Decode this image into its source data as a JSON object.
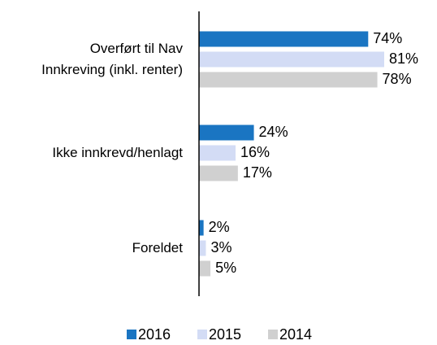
{
  "chart_data": {
    "type": "bar",
    "orientation": "horizontal",
    "categories": [
      "Overført til Nav\nInnkreving (inkl. renter)",
      "Ikke innkrevd/henlagt",
      "Foreldet"
    ],
    "series": [
      {
        "name": "2016",
        "color": "#1a75c2",
        "values": [
          74,
          24,
          2
        ],
        "value_labels": [
          "74%",
          "24%",
          "2%"
        ]
      },
      {
        "name": "2015",
        "color": "#d3dcf5",
        "values": [
          81,
          16,
          3
        ],
        "value_labels": [
          "81%",
          "16%",
          "3%"
        ]
      },
      {
        "name": "2014",
        "color": "#d0d0d0",
        "values": [
          78,
          17,
          5
        ],
        "value_labels": [
          "78%",
          "17%",
          "5%"
        ]
      }
    ],
    "legend": "bottom"
  }
}
